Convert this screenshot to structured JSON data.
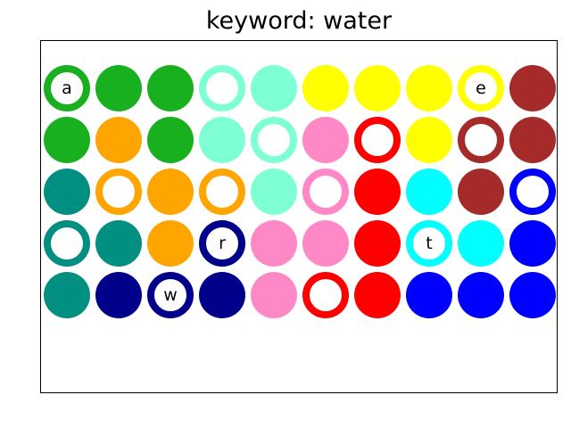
{
  "title": "keyword: water",
  "colors": {
    "green": "#19b01f",
    "orange": "#ffa500",
    "teal": "#008f80",
    "navy": "#00008b",
    "aquamarine": "#7fffd4",
    "pink": "#ff88c6",
    "yellow": "#ffff00",
    "red": "#ff0000",
    "cyan": "#00ffff",
    "blue": "#0000ff",
    "brown": "#a52a2a"
  },
  "grid": [
    [
      {
        "color": "green",
        "style": "ring",
        "letter": "a"
      },
      {
        "color": "green",
        "style": "filled",
        "letter": ""
      },
      {
        "color": "green",
        "style": "filled",
        "letter": ""
      },
      {
        "color": "aquamarine",
        "style": "ring",
        "letter": ""
      },
      {
        "color": "aquamarine",
        "style": "filled",
        "letter": ""
      },
      {
        "color": "yellow",
        "style": "filled",
        "letter": ""
      },
      {
        "color": "yellow",
        "style": "filled",
        "letter": ""
      },
      {
        "color": "yellow",
        "style": "filled",
        "letter": ""
      },
      {
        "color": "yellow",
        "style": "ring",
        "letter": "e"
      },
      {
        "color": "brown",
        "style": "filled",
        "letter": ""
      }
    ],
    [
      {
        "color": "green",
        "style": "filled",
        "letter": ""
      },
      {
        "color": "orange",
        "style": "filled",
        "letter": ""
      },
      {
        "color": "green",
        "style": "filled",
        "letter": ""
      },
      {
        "color": "aquamarine",
        "style": "filled",
        "letter": ""
      },
      {
        "color": "aquamarine",
        "style": "ring",
        "letter": ""
      },
      {
        "color": "pink",
        "style": "filled",
        "letter": ""
      },
      {
        "color": "red",
        "style": "ring",
        "letter": ""
      },
      {
        "color": "yellow",
        "style": "filled",
        "letter": ""
      },
      {
        "color": "brown",
        "style": "ring",
        "letter": ""
      },
      {
        "color": "brown",
        "style": "filled",
        "letter": ""
      }
    ],
    [
      {
        "color": "teal",
        "style": "filled",
        "letter": ""
      },
      {
        "color": "orange",
        "style": "ring",
        "letter": ""
      },
      {
        "color": "orange",
        "style": "filled",
        "letter": ""
      },
      {
        "color": "orange",
        "style": "ring",
        "letter": ""
      },
      {
        "color": "aquamarine",
        "style": "filled",
        "letter": ""
      },
      {
        "color": "pink",
        "style": "ring",
        "letter": ""
      },
      {
        "color": "red",
        "style": "filled",
        "letter": ""
      },
      {
        "color": "cyan",
        "style": "filled",
        "letter": ""
      },
      {
        "color": "brown",
        "style": "filled",
        "letter": ""
      },
      {
        "color": "blue",
        "style": "ring",
        "letter": ""
      }
    ],
    [
      {
        "color": "teal",
        "style": "ring",
        "letter": ""
      },
      {
        "color": "teal",
        "style": "filled",
        "letter": ""
      },
      {
        "color": "orange",
        "style": "filled",
        "letter": ""
      },
      {
        "color": "navy",
        "style": "ring",
        "letter": "r"
      },
      {
        "color": "pink",
        "style": "filled",
        "letter": ""
      },
      {
        "color": "pink",
        "style": "filled",
        "letter": ""
      },
      {
        "color": "red",
        "style": "filled",
        "letter": ""
      },
      {
        "color": "cyan",
        "style": "ring",
        "letter": "t"
      },
      {
        "color": "cyan",
        "style": "filled",
        "letter": ""
      },
      {
        "color": "blue",
        "style": "filled",
        "letter": ""
      }
    ],
    [
      {
        "color": "teal",
        "style": "filled",
        "letter": ""
      },
      {
        "color": "navy",
        "style": "filled",
        "letter": ""
      },
      {
        "color": "navy",
        "style": "ring",
        "letter": "w"
      },
      {
        "color": "navy",
        "style": "filled",
        "letter": ""
      },
      {
        "color": "pink",
        "style": "filled",
        "letter": ""
      },
      {
        "color": "red",
        "style": "ring",
        "letter": ""
      },
      {
        "color": "red",
        "style": "filled",
        "letter": ""
      },
      {
        "color": "blue",
        "style": "filled",
        "letter": ""
      },
      {
        "color": "blue",
        "style": "filled",
        "letter": ""
      },
      {
        "color": "blue",
        "style": "filled",
        "letter": ""
      }
    ]
  ]
}
